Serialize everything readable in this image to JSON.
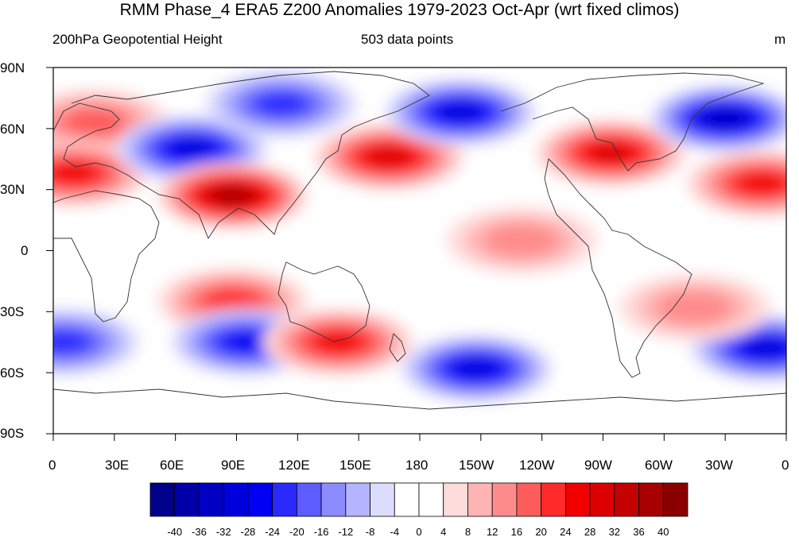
{
  "title": "RMM Phase_4 ERA5 Z200 Anomalies 1979-2023 Oct-Apr (wrt fixed climos)",
  "left_subtitle": "200hPa Geopotential Height",
  "center_subtitle": "503 data points",
  "units": "m",
  "lat_labels": [
    "90N",
    "60N",
    "30N",
    "0",
    "30S",
    "60S",
    "90S"
  ],
  "lon_labels": [
    "0",
    "30E",
    "60E",
    "90E",
    "120E",
    "150E",
    "180",
    "150W",
    "120W",
    "90W",
    "60W",
    "30W",
    "0"
  ],
  "colorbar": {
    "labels": [
      "-40",
      "-36",
      "-32",
      "-28",
      "-24",
      "-20",
      "-16",
      "-12",
      "-8",
      "-4",
      "0",
      "4",
      "8",
      "12",
      "16",
      "20",
      "24",
      "28",
      "32",
      "36",
      "40"
    ],
    "colors": [
      "#00008a",
      "#0000a8",
      "#0000c4",
      "#0000dd",
      "#0000f2",
      "#2a2aff",
      "#5c5cff",
      "#8c8cff",
      "#b4b4ff",
      "#dcdcff",
      "#ffffff",
      "#ffffff",
      "#ffdcdc",
      "#ffb4b4",
      "#ff8c8c",
      "#ff5c5c",
      "#ff2a2a",
      "#f20000",
      "#dd0000",
      "#c40000",
      "#a80000",
      "#8a0000"
    ]
  },
  "anomaly_centers": [
    {
      "lon": 20,
      "lat": 63,
      "value": 18
    },
    {
      "lon": 10,
      "lat": 38,
      "value": 24
    },
    {
      "lon": 68,
      "lat": 50,
      "value": -28
    },
    {
      "lon": 88,
      "lat": 27,
      "value": 36
    },
    {
      "lon": 112,
      "lat": 72,
      "value": -20
    },
    {
      "lon": 165,
      "lat": 46,
      "value": 28
    },
    {
      "lon": 200,
      "lat": 68,
      "value": -30
    },
    {
      "lon": 274,
      "lat": 48,
      "value": 30
    },
    {
      "lon": 330,
      "lat": 65,
      "value": -32
    },
    {
      "lon": 348,
      "lat": 33,
      "value": 24
    },
    {
      "lon": 88,
      "lat": -25,
      "value": 22
    },
    {
      "lon": 95,
      "lat": -45,
      "value": -26
    },
    {
      "lon": 140,
      "lat": -45,
      "value": 26
    },
    {
      "lon": 208,
      "lat": -58,
      "value": -30
    },
    {
      "lon": 350,
      "lat": -48,
      "value": -28
    },
    {
      "lon": 5,
      "lat": -45,
      "value": -20
    },
    {
      "lon": 230,
      "lat": 5,
      "value": 12
    },
    {
      "lon": 315,
      "lat": -28,
      "value": 14
    }
  ]
}
